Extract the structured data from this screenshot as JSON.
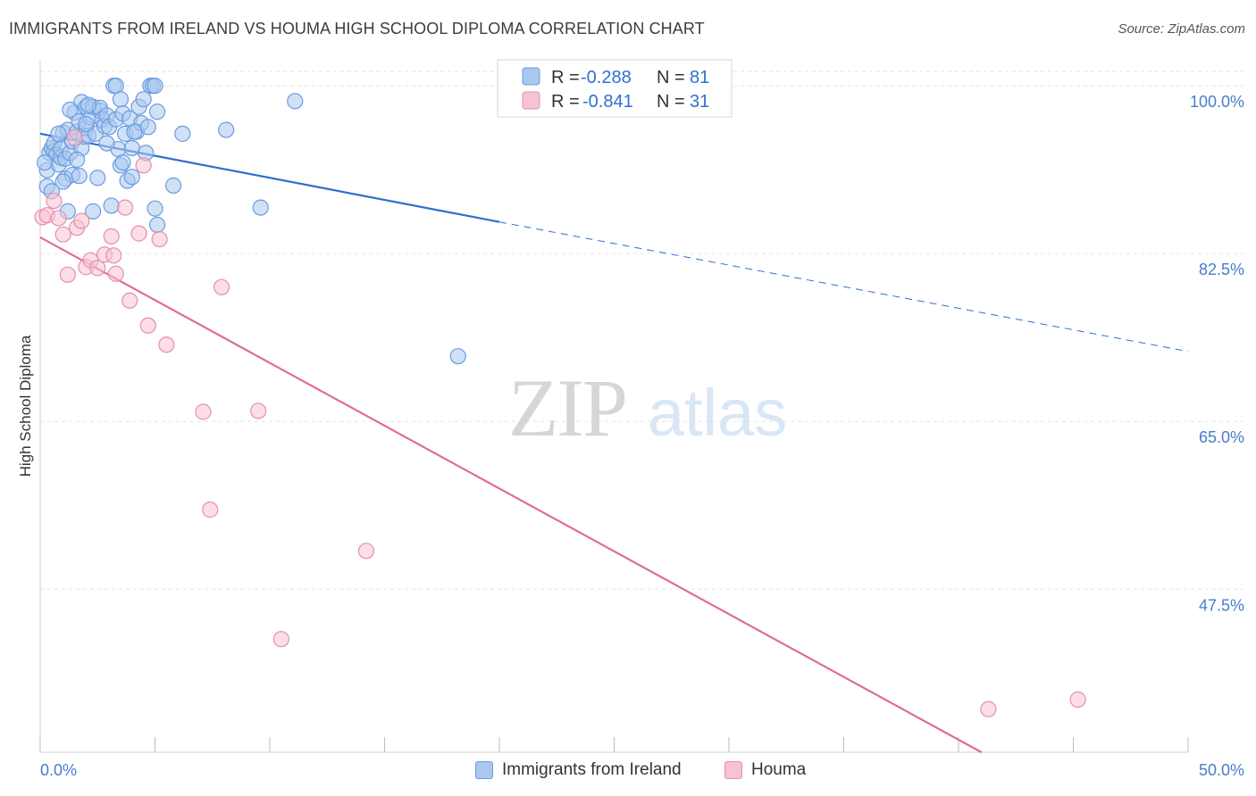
{
  "header": {
    "title": "IMMIGRANTS FROM IRELAND VS HOUMA HIGH SCHOOL DIPLOMA CORRELATION CHART",
    "source": "Source: ZipAtlas.com"
  },
  "watermark": {
    "zip": "ZIP",
    "atlas": "atlas"
  },
  "legend": {
    "r_label": "R =",
    "n_label": "N =",
    "entries": [
      {
        "r": "-0.288",
        "n": "81"
      },
      {
        "r": "-0.841",
        "n": "31"
      }
    ]
  },
  "bottom_legend": [
    {
      "label": "Immigrants from Ireland"
    },
    {
      "label": "Houma"
    }
  ],
  "colors": {
    "blue_fill": "#a9c8ef",
    "blue_stroke": "#6a9be0",
    "blue_line": "#2f6fd0",
    "pink_fill": "#f7c3d3",
    "pink_stroke": "#e58faa",
    "pink_line": "#e06c97",
    "tick_label": "#4a7cc9",
    "grid": "#e3e3e3"
  },
  "chart_data": {
    "type": "scatter",
    "title": "IMMIGRANTS FROM IRELAND VS HOUMA HIGH SCHOOL DIPLOMA CORRELATION CHART",
    "xlabel": "",
    "ylabel": "High School Diploma",
    "xlim": [
      0,
      50
    ],
    "ylim": [
      30.5,
      101.5
    ],
    "x_tick_labels": [
      "0.0%",
      "50.0%"
    ],
    "y_ticks": [
      47.5,
      65.0,
      82.5,
      100.0
    ],
    "y_tick_labels": [
      "47.5%",
      "65.0%",
      "82.5%",
      "100.0%"
    ],
    "grid": true,
    "legend_position": "top-center",
    "series": [
      {
        "name": "Immigrants from Ireland",
        "r": -0.288,
        "n": 81,
        "trend": {
          "x0": 0,
          "y0": 95.0,
          "x1": 20,
          "y1": 85.8,
          "dash_x1": 50,
          "dash_y1": 72.3
        },
        "points": [
          [
            0.3,
            89.5
          ],
          [
            0.3,
            91.2
          ],
          [
            0.4,
            93.0
          ],
          [
            0.5,
            93.5
          ],
          [
            0.6,
            93.2
          ],
          [
            0.6,
            94.0
          ],
          [
            0.7,
            92.8
          ],
          [
            0.8,
            91.8
          ],
          [
            0.9,
            92.5
          ],
          [
            0.9,
            93.4
          ],
          [
            1.0,
            95.1
          ],
          [
            1.1,
            92.4
          ],
          [
            1.1,
            90.3
          ],
          [
            1.2,
            86.9
          ],
          [
            1.2,
            95.4
          ],
          [
            1.3,
            93.0
          ],
          [
            1.4,
            90.7
          ],
          [
            1.4,
            94.2
          ],
          [
            1.5,
            97.2
          ],
          [
            1.6,
            95.2
          ],
          [
            1.7,
            96.3
          ],
          [
            1.7,
            90.6
          ],
          [
            1.8,
            93.5
          ],
          [
            1.8,
            98.3
          ],
          [
            1.9,
            94.7
          ],
          [
            2.0,
            97.8
          ],
          [
            2.0,
            95.6
          ],
          [
            2.1,
            94.8
          ],
          [
            2.2,
            96.7
          ],
          [
            2.3,
            97.8
          ],
          [
            2.3,
            86.9
          ],
          [
            2.4,
            95.0
          ],
          [
            2.5,
            90.4
          ],
          [
            2.6,
            97.4
          ],
          [
            2.6,
            97.7
          ],
          [
            2.7,
            96.5
          ],
          [
            2.8,
            95.8
          ],
          [
            2.9,
            96.9
          ],
          [
            3.0,
            95.7
          ],
          [
            3.1,
            87.5
          ],
          [
            3.2,
            100.0
          ],
          [
            3.3,
            100.0
          ],
          [
            3.3,
            96.5
          ],
          [
            3.4,
            93.4
          ],
          [
            3.5,
            98.6
          ],
          [
            3.5,
            91.7
          ],
          [
            3.6,
            97.1
          ],
          [
            3.7,
            95.0
          ],
          [
            3.8,
            90.1
          ],
          [
            3.9,
            96.6
          ],
          [
            4.0,
            90.5
          ],
          [
            4.0,
            93.5
          ],
          [
            4.2,
            95.2
          ],
          [
            4.3,
            97.8
          ],
          [
            4.4,
            96.1
          ],
          [
            4.5,
            98.6
          ],
          [
            4.7,
            95.7
          ],
          [
            4.8,
            100.0
          ],
          [
            4.9,
            100.0
          ],
          [
            5.0,
            100.0
          ],
          [
            5.1,
            97.3
          ],
          [
            4.1,
            95.2
          ],
          [
            5.1,
            85.5
          ],
          [
            5.0,
            87.2
          ],
          [
            5.8,
            89.6
          ],
          [
            6.2,
            95.0
          ],
          [
            8.1,
            95.4
          ],
          [
            9.6,
            87.3
          ],
          [
            11.1,
            98.4
          ],
          [
            18.2,
            71.8
          ],
          [
            0.2,
            92.0
          ],
          [
            0.5,
            89.0
          ],
          [
            1.6,
            92.3
          ],
          [
            2.0,
            96.0
          ],
          [
            2.9,
            94.0
          ],
          [
            1.0,
            90.0
          ],
          [
            3.6,
            92.0
          ],
          [
            4.6,
            93.0
          ],
          [
            2.1,
            98.0
          ],
          [
            0.8,
            95.0
          ],
          [
            1.3,
            97.5
          ]
        ]
      },
      {
        "name": "Houma",
        "r": -0.841,
        "n": 31,
        "trend": {
          "x0": 0,
          "y0": 84.2,
          "x1": 41.0,
          "y1": 30.5
        },
        "points": [
          [
            0.1,
            86.3
          ],
          [
            0.3,
            86.5
          ],
          [
            0.6,
            88.0
          ],
          [
            0.8,
            86.2
          ],
          [
            1.0,
            84.5
          ],
          [
            1.2,
            80.3
          ],
          [
            1.5,
            94.6
          ],
          [
            1.6,
            85.2
          ],
          [
            1.8,
            85.9
          ],
          [
            2.0,
            81.1
          ],
          [
            2.2,
            81.8
          ],
          [
            2.5,
            81.0
          ],
          [
            2.8,
            82.4
          ],
          [
            3.1,
            84.3
          ],
          [
            3.2,
            82.3
          ],
          [
            3.3,
            80.4
          ],
          [
            3.7,
            87.3
          ],
          [
            3.9,
            77.6
          ],
          [
            4.3,
            84.6
          ],
          [
            4.5,
            91.7
          ],
          [
            4.7,
            75.0
          ],
          [
            5.2,
            84.0
          ],
          [
            5.5,
            73.0
          ],
          [
            7.1,
            66.0
          ],
          [
            7.4,
            55.8
          ],
          [
            7.9,
            79.0
          ],
          [
            9.5,
            66.1
          ],
          [
            10.5,
            42.3
          ],
          [
            14.2,
            51.5
          ],
          [
            41.3,
            35.0
          ],
          [
            45.2,
            36.0
          ]
        ]
      }
    ]
  }
}
